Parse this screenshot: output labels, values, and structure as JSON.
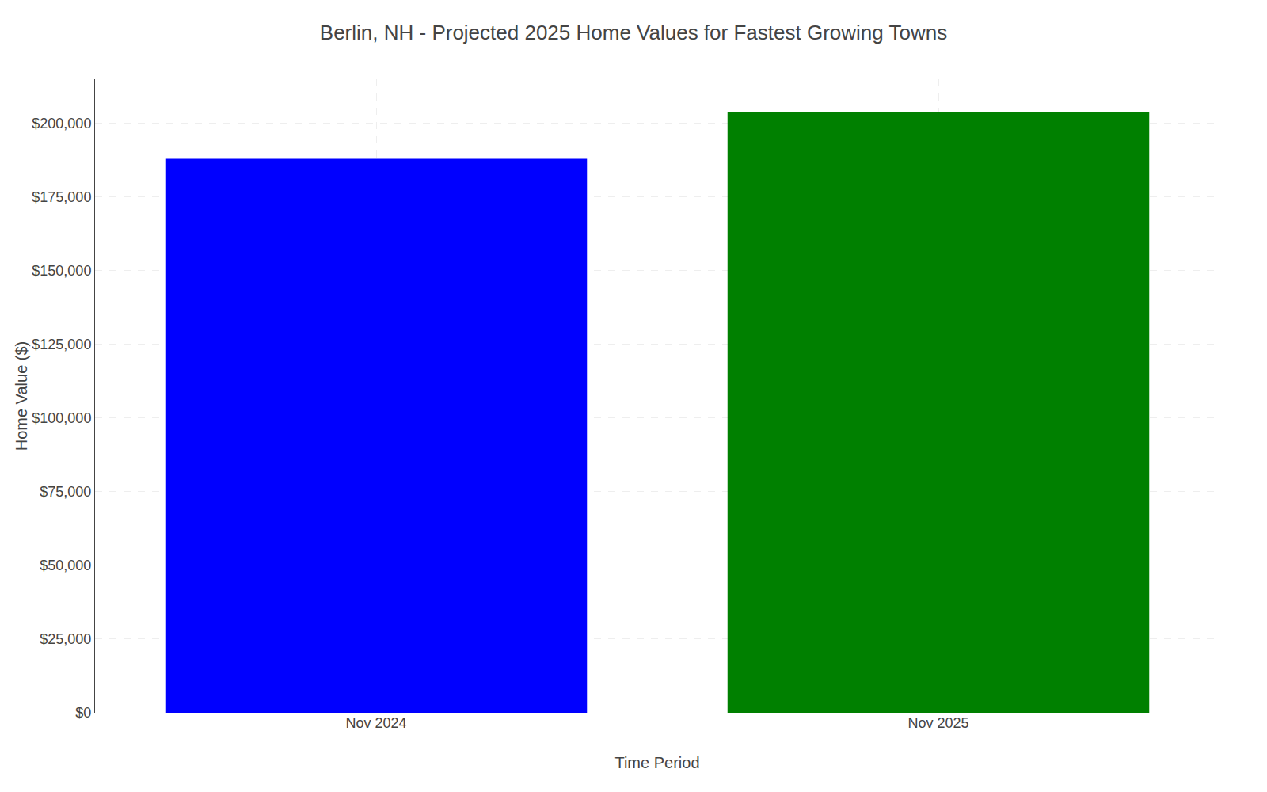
{
  "chart_data": {
    "type": "bar",
    "title": "Berlin, NH - Projected 2025 Home Values for Fastest Growing Towns",
    "xlabel": "Time Period",
    "ylabel": "Home Value ($)",
    "categories": [
      "Nov 2024",
      "Nov 2025"
    ],
    "values": [
      188000,
      204000
    ],
    "colors": [
      "#0000FF",
      "#008000"
    ],
    "ylim": [
      0,
      215000
    ],
    "yticks": [
      {
        "value": 0,
        "label": "$0"
      },
      {
        "value": 25000,
        "label": "$25,000"
      },
      {
        "value": 50000,
        "label": "$50,000"
      },
      {
        "value": 75000,
        "label": "$75,000"
      },
      {
        "value": 100000,
        "label": "$100,000"
      },
      {
        "value": 125000,
        "label": "$125,000"
      },
      {
        "value": 150000,
        "label": "$150,000"
      },
      {
        "value": 175000,
        "label": "$175,000"
      },
      {
        "value": 200000,
        "label": "$200,000"
      }
    ],
    "grid": true
  }
}
